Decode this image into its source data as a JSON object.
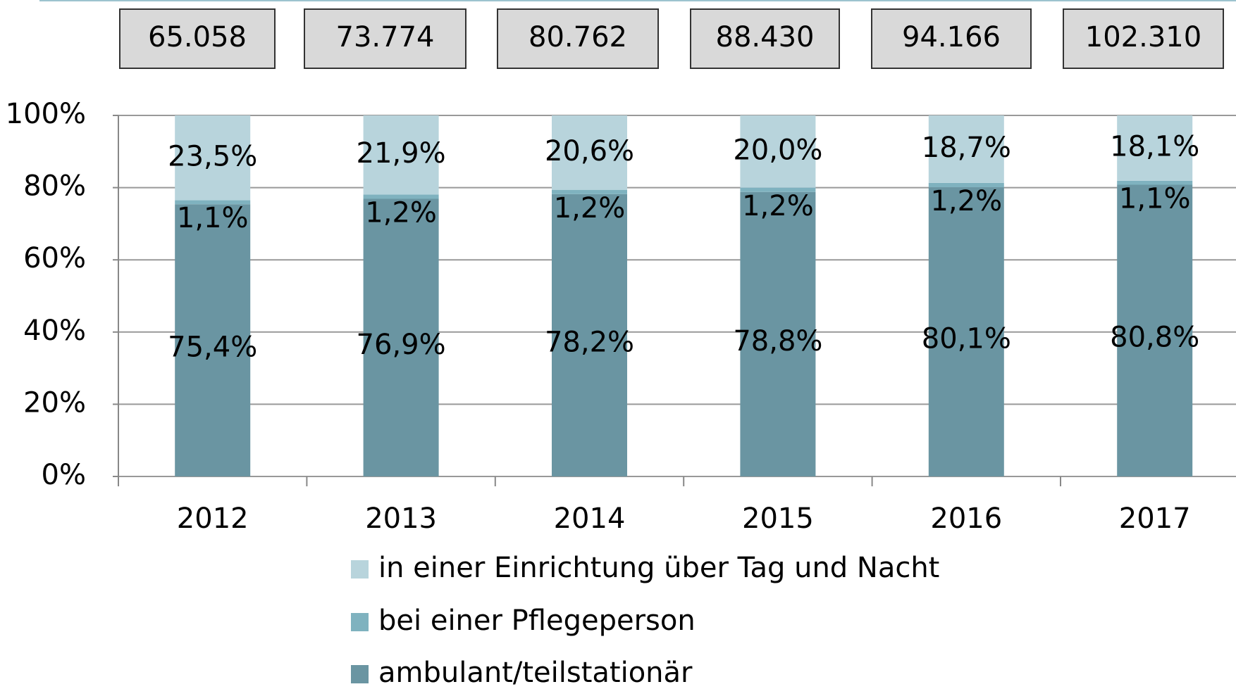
{
  "chart_data": {
    "type": "stacked_bar",
    "categories": [
      "2012",
      "2013",
      "2014",
      "2015",
      "2016",
      "2017"
    ],
    "annotations": [
      "65.058",
      "73.774",
      "80.762",
      "88.430",
      "94.166",
      "102.310"
    ],
    "series": [
      {
        "name": "ambulant/teilstationär",
        "color": "#6a95a2",
        "values": [
          75.4,
          76.9,
          78.2,
          78.8,
          80.1,
          80.8
        ],
        "value_labels": [
          "75,4%",
          "76,9%",
          "78,2%",
          "78,8%",
          "80,1%",
          "80,8%"
        ]
      },
      {
        "name": "bei einer Pflegeperson",
        "color": "#7fb2bf",
        "values": [
          1.1,
          1.2,
          1.2,
          1.2,
          1.2,
          1.1
        ],
        "value_labels": [
          "1,1%",
          "1,2%",
          "1,2%",
          "1,2%",
          "1,2%",
          "1,1%"
        ]
      },
      {
        "name": "in einer Einrichtung über Tag und Nacht",
        "color": "#b8d4dc",
        "values": [
          23.5,
          21.9,
          20.6,
          20.0,
          18.7,
          18.1
        ],
        "value_labels": [
          "23,5%",
          "21,9%",
          "20,6%",
          "20,0%",
          "18,7%",
          "18,1%"
        ]
      }
    ],
    "ylim": [
      0,
      100
    ],
    "yticks": [
      {
        "value": 0,
        "label": "0%"
      },
      {
        "value": 20,
        "label": "20%"
      },
      {
        "value": 40,
        "label": "40%"
      },
      {
        "value": 60,
        "label": "60%"
      },
      {
        "value": 80,
        "label": "80%"
      },
      {
        "value": 100,
        "label": "100%"
      }
    ],
    "grid": true
  }
}
